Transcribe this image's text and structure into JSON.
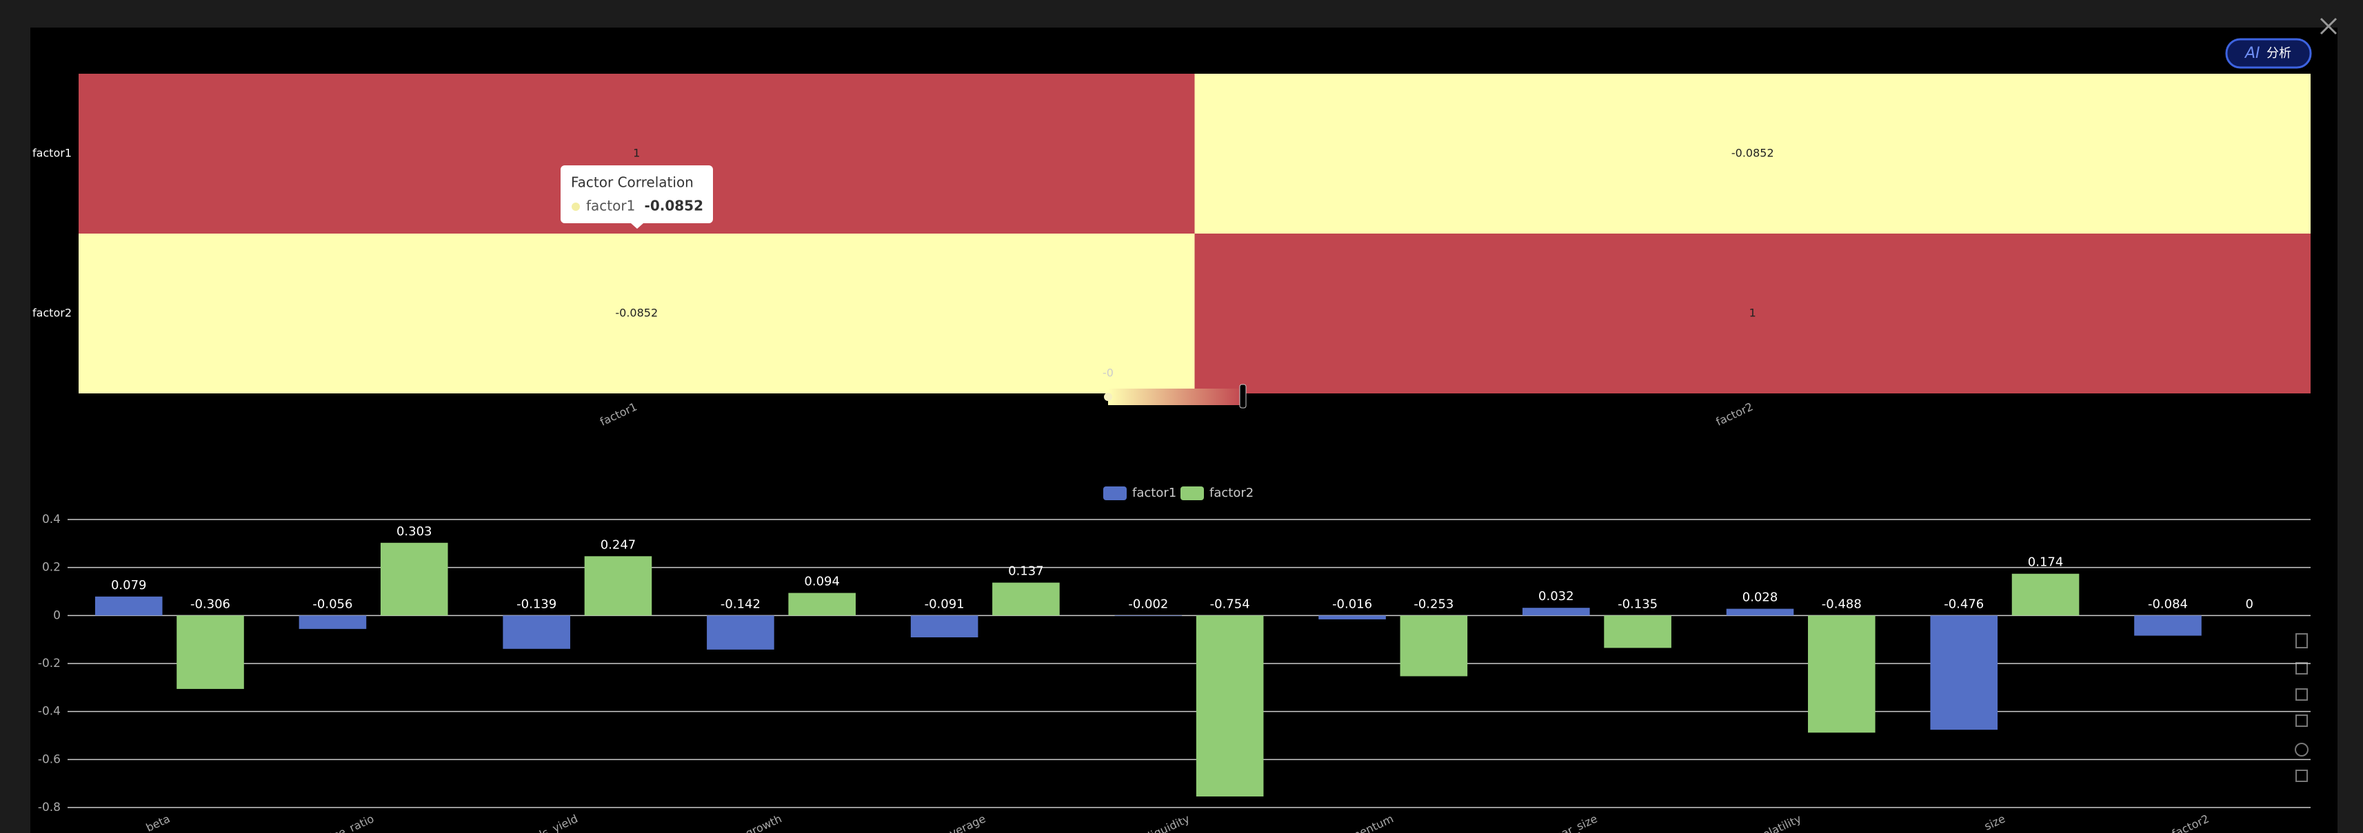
{
  "chart_data": [
    {
      "type": "heatmap",
      "x": [
        "factor1",
        "factor2"
      ],
      "y": [
        "factor1",
        "factor2"
      ],
      "values": [
        [
          1,
          -0.0852
        ],
        [
          -0.0852,
          1
        ]
      ],
      "visual_range": [
        -0.0852,
        1
      ],
      "colors": [
        "#ffffb2",
        "#c1464f"
      ],
      "visual_map_label": "-0",
      "tooltip": {
        "title": "Factor Correlation",
        "series": "factor1",
        "value": -0.0852
      }
    },
    {
      "type": "bar",
      "categories": [
        "beta",
        "ice_ratio",
        "ds_yield",
        "growth",
        "leverage",
        "liquidity",
        "momentum",
        "near_size",
        "volatility",
        "size",
        "factor2"
      ],
      "series": [
        {
          "name": "factor1",
          "color": "#5470c6",
          "values": [
            0.079,
            -0.056,
            -0.139,
            -0.142,
            -0.091,
            -0.002,
            -0.016,
            0.032,
            0.028,
            -0.476,
            -0.084
          ]
        },
        {
          "name": "factor2",
          "color": "#91cc75",
          "values": [
            -0.306,
            0.303,
            0.247,
            0.094,
            0.137,
            -0.754,
            -0.253,
            -0.135,
            -0.488,
            0.174,
            0
          ]
        }
      ],
      "ylim": [
        -0.8,
        0.4
      ],
      "yticks": [
        -0.8,
        -0.6,
        -0.4,
        -0.2,
        0,
        0.2,
        0.4
      ],
      "grid": true
    }
  ],
  "ai_button": "分析"
}
